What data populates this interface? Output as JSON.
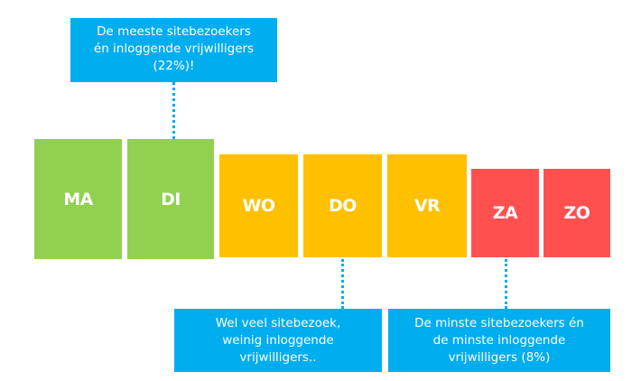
{
  "colors": {
    "green": "#92d050",
    "yellow": "#ffc000",
    "red": "#ff5050",
    "callout": "#00adef"
  },
  "days": [
    {
      "label": "MA",
      "level": "green"
    },
    {
      "label": "DI",
      "level": "green"
    },
    {
      "label": "WO",
      "level": "yellow"
    },
    {
      "label": "DO",
      "level": "yellow"
    },
    {
      "label": "VR",
      "level": "yellow"
    },
    {
      "label": "ZA",
      "level": "red"
    },
    {
      "label": "ZO",
      "level": "red"
    }
  ],
  "callouts": {
    "top": {
      "lines": [
        "De meeste sitebezoekers",
        "én inloggende vrijwilligers",
        "(22%)!"
      ]
    },
    "middle": {
      "lines": [
        "Wel veel sitebezoek,",
        "weinig inloggende",
        "vrijwilligers.."
      ]
    },
    "right": {
      "lines": [
        "De minste sitebezoekers én",
        "de minste inloggende",
        "vrijwilligers (8%)"
      ]
    }
  }
}
